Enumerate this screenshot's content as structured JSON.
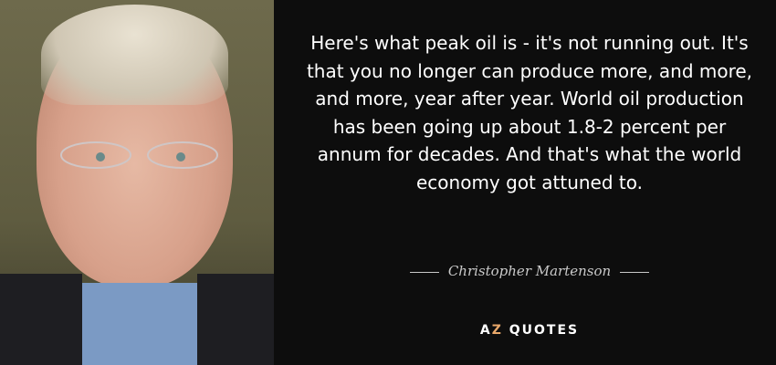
{
  "quote": {
    "text": "Here's what peak oil is - it's not running out. It's that you no longer can produce more, and more, and more, year after year. World oil production has been going up about 1.8-2 percent per annum for decades. And that's what the world economy got attuned to.",
    "author": "Christopher Martenson"
  },
  "logo": {
    "a": "A",
    "z": "Z",
    "rest": "QUOTES",
    "accent_color": "#e9a86a"
  },
  "colors": {
    "background": "#0d0d0d",
    "text": "#ffffff"
  }
}
